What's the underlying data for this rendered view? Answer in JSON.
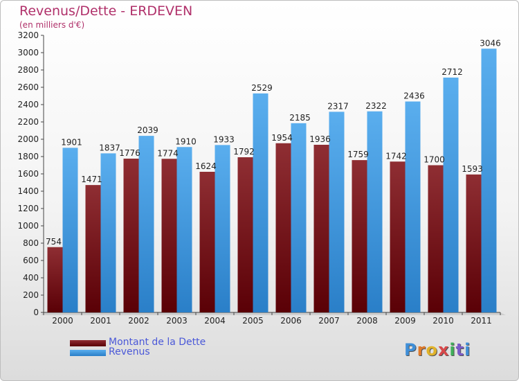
{
  "title": "Revenus/Dette - ERDEVEN",
  "subtitle": "(en milliers d'€)",
  "chart_data": {
    "type": "bar",
    "categories": [
      "2000",
      "2001",
      "2002",
      "2003",
      "2004",
      "2005",
      "2006",
      "2007",
      "2008",
      "2009",
      "2010",
      "2011"
    ],
    "series": [
      {
        "name": "Montant de la Dette",
        "color": "#7a1a1f",
        "values": [
          754,
          1471,
          1776,
          1774,
          1624,
          1792,
          1954,
          1936,
          1759,
          1742,
          1700,
          1593
        ],
        "labels": [
          "754",
          "1471",
          "1776",
          "1774",
          "1624",
          "1792",
          "1954",
          "1936",
          "1759",
          "1742",
          "1700",
          "1593"
        ]
      },
      {
        "name": "Revenus",
        "color": "#4ba3e8",
        "values": [
          1901,
          1837,
          2039,
          1910,
          1933,
          2529,
          2185,
          2317,
          2322,
          2436,
          2712,
          3046
        ],
        "labels": [
          "1901",
          "1837",
          "2039",
          "1910",
          "1933",
          "2529",
          "2185",
          "2317",
          "2322",
          "2436",
          "2712",
          "3046"
        ]
      }
    ],
    "yticks": [
      "0",
      "200",
      "400",
      "600",
      "800",
      "1000",
      "1200",
      "1400",
      "1600",
      "1800",
      "2000",
      "2200",
      "2400",
      "2600",
      "2800",
      "3000",
      "3200"
    ],
    "ylim": [
      0,
      3200
    ],
    "grid": false,
    "legend": "bottom-left"
  },
  "legend": {
    "debt_label": "Montant de la Dette",
    "revenue_label": "Revenus"
  },
  "logo": {
    "letters": [
      "P",
      "r",
      "o",
      "x",
      "i",
      "t",
      "i"
    ],
    "colors": [
      "#3f8fd8",
      "#e07a2a",
      "#e0b22a",
      "#d8484a",
      "#3fae5a",
      "#7a5ac8",
      "#3f8fd8"
    ]
  }
}
